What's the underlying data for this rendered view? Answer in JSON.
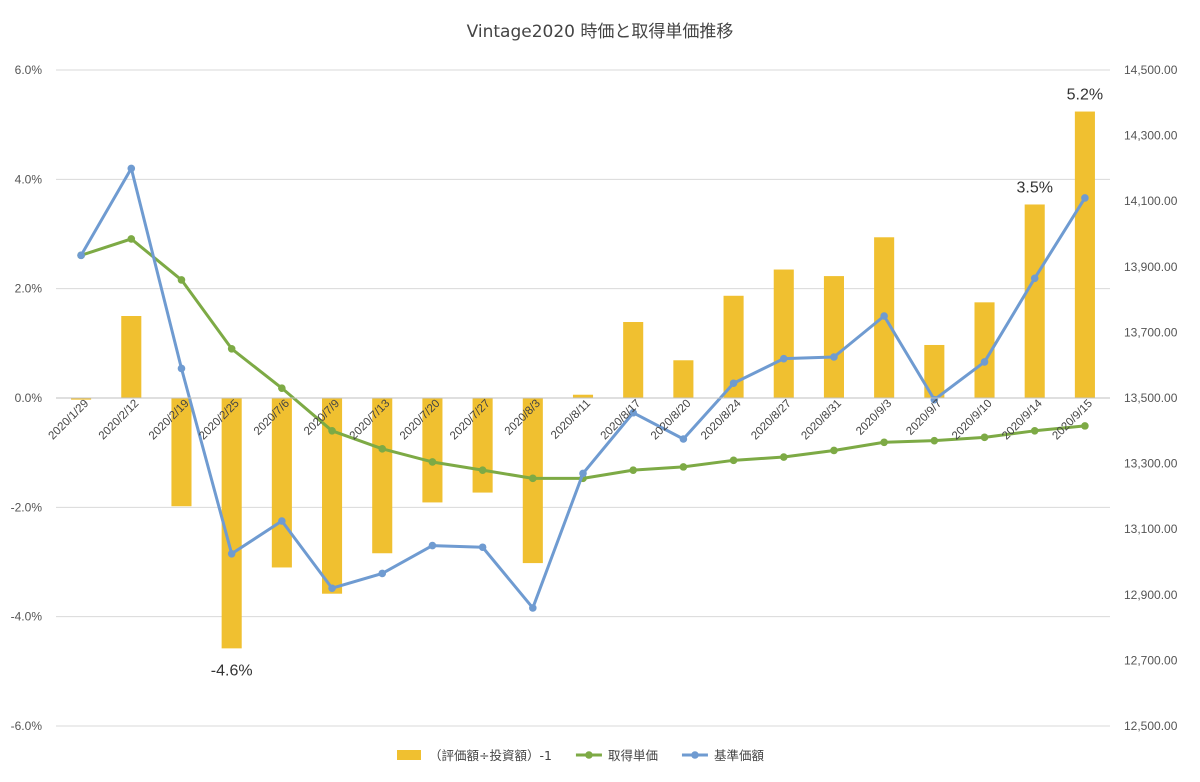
{
  "chart_data": {
    "type": "bar+line",
    "title": "Vintage2020 時価と取得単価推移",
    "categories": [
      "2020/1/29",
      "2020/2/12",
      "2020/2/19",
      "2020/2/25",
      "2020/7/6",
      "2020/7/9",
      "2020/7/13",
      "2020/7/20",
      "2020/7/27",
      "2020/8/3",
      "2020/8/11",
      "2020/8/17",
      "2020/8/20",
      "2020/8/24",
      "2020/8/27",
      "2020/8/31",
      "2020/9/3",
      "2020/9/7",
      "2020/9/10",
      "2020/9/14",
      "2020/9/15"
    ],
    "y_left": {
      "ylim": [
        -0.06,
        0.06
      ],
      "ticks": [
        "6.0%",
        "4.0%",
        "2.0%",
        "0.0%",
        "-2.0%",
        "-4.0%",
        "-6.0%"
      ],
      "tick_values": [
        0.06,
        0.04,
        0.02,
        0,
        -0.02,
        -0.04,
        -0.06
      ]
    },
    "y_right": {
      "ylim": [
        12500,
        14500
      ],
      "ticks": [
        "14,500.00",
        "14,300.00",
        "14,100.00",
        "13,900.00",
        "13,700.00",
        "13,500.00",
        "13,300.00",
        "13,100.00",
        "12,900.00",
        "12,700.00",
        "12,500.00"
      ],
      "tick_values": [
        14500,
        14300,
        14100,
        13900,
        13700,
        13500,
        13300,
        13100,
        12900,
        12700,
        12500
      ]
    },
    "series": [
      {
        "name": "（評価額÷投資額）-1",
        "type": "bar",
        "axis": "left",
        "color": "#F0C030",
        "values": [
          -0.0003,
          0.015,
          -0.0198,
          -0.0458,
          -0.031,
          -0.0358,
          -0.0284,
          -0.0191,
          -0.0173,
          -0.0302,
          0.0006,
          0.0139,
          0.0069,
          0.0187,
          0.0235,
          0.0223,
          0.0294,
          0.0097,
          0.0175,
          0.0354,
          0.0524
        ]
      },
      {
        "name": "取得単価",
        "type": "line",
        "axis": "right",
        "color": "#7DAA45",
        "values": [
          13935,
          13985,
          13860,
          13650,
          13530,
          13400,
          13345,
          13305,
          13280,
          13255,
          13255,
          13280,
          13290,
          13310,
          13320,
          13340,
          13365,
          13370,
          13380,
          13400,
          13415
        ]
      },
      {
        "name": "基準価額",
        "type": "line",
        "axis": "right",
        "color": "#6F9BD1",
        "values": [
          13935,
          14200,
          13590,
          13025,
          13125,
          12920,
          12965,
          13050,
          13045,
          12860,
          13270,
          13455,
          13375,
          13545,
          13620,
          13625,
          13750,
          13495,
          13610,
          13865,
          14110
        ]
      }
    ],
    "annotations": [
      {
        "text": "-4.6%",
        "category_index": 3,
        "series": 0
      },
      {
        "text": "3.5%",
        "category_index": 19,
        "series": 0
      },
      {
        "text": "5.2%",
        "category_index": 20,
        "series": 0
      }
    ],
    "grid": true,
    "legend_position": "bottom"
  }
}
